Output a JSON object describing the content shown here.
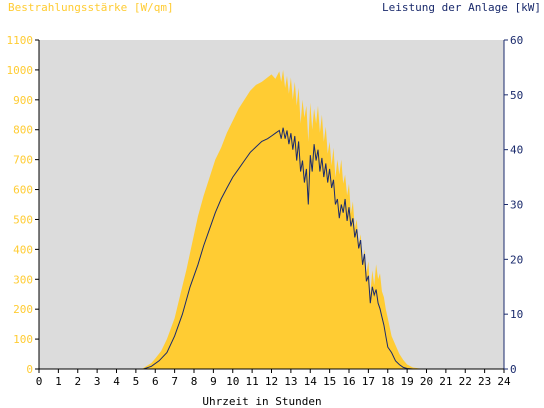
{
  "chart_data": {
    "type": "area",
    "title_left": "Bestrahlungsstärke [W/qm]",
    "title_right": "Leistung der Anlage [kW]",
    "xlabel": "Uhrzeit in Stunden",
    "xlim": [
      0,
      24
    ],
    "ylim_left": [
      0,
      1100
    ],
    "ylim_right": [
      0,
      60
    ],
    "x_ticks": [
      "0",
      "1",
      "2",
      "3",
      "4",
      "5",
      "6",
      "7",
      "8",
      "9",
      "10",
      "11",
      "12",
      "13",
      "14",
      "15",
      "16",
      "17",
      "18",
      "19",
      "20",
      "21",
      "22",
      "23",
      "24"
    ],
    "y_ticks_left": [
      "0",
      "100",
      "200",
      "300",
      "400",
      "500",
      "600",
      "700",
      "800",
      "900",
      "1000",
      "1100"
    ],
    "y_ticks_right": [
      "0",
      "10",
      "20",
      "30",
      "40",
      "50",
      "60"
    ],
    "grid": false,
    "colors": {
      "plot_bg": "#dcdcdc",
      "irradiance": "#ffcc33",
      "power": "#1a2a6c",
      "left_axis_text": "#ffcc33",
      "right_axis_text": "#1a2a6c"
    },
    "series": [
      {
        "axis": "left",
        "style": "area",
        "x": [
          0,
          5.3,
          5.5,
          5.8,
          6.0,
          6.3,
          6.6,
          7.0,
          7.3,
          7.6,
          7.9,
          8.2,
          8.5,
          8.8,
          9.1,
          9.4,
          9.7,
          10.0,
          10.3,
          10.6,
          10.9,
          11.2,
          11.5,
          11.8,
          12.0,
          12.2,
          12.4,
          12.5,
          12.6,
          12.7,
          12.8,
          12.9,
          13.0,
          13.1,
          13.2,
          13.3,
          13.4,
          13.5,
          13.6,
          13.7,
          13.8,
          13.9,
          14.0,
          14.1,
          14.2,
          14.3,
          14.4,
          14.5,
          14.6,
          14.7,
          14.8,
          14.9,
          15.0,
          15.1,
          15.2,
          15.3,
          15.4,
          15.5,
          15.6,
          15.7,
          15.8,
          15.9,
          16.0,
          16.1,
          16.2,
          16.3,
          16.4,
          16.5,
          16.6,
          16.7,
          16.8,
          16.9,
          17.0,
          17.1,
          17.2,
          17.3,
          17.4,
          17.5,
          17.6,
          17.7,
          17.8,
          17.9,
          18.0,
          18.2,
          18.4,
          18.6,
          18.8,
          19.0,
          19.3,
          19.6,
          20.0,
          24
        ],
        "y": [
          0,
          0,
          8,
          20,
          35,
          60,
          100,
          170,
          250,
          330,
          420,
          510,
          580,
          640,
          700,
          740,
          790,
          830,
          870,
          900,
          930,
          950,
          960,
          975,
          985,
          970,
          995,
          960,
          1000,
          940,
          980,
          920,
          975,
          900,
          960,
          880,
          940,
          820,
          900,
          840,
          880,
          760,
          890,
          800,
          870,
          820,
          880,
          790,
          850,
          760,
          810,
          720,
          760,
          680,
          740,
          640,
          700,
          650,
          700,
          620,
          650,
          580,
          620,
          520,
          560,
          470,
          500,
          420,
          450,
          360,
          400,
          320,
          360,
          250,
          330,
          280,
          350,
          300,
          320,
          260,
          240,
          200,
          170,
          110,
          80,
          50,
          30,
          15,
          5,
          2,
          0,
          0
        ]
      },
      {
        "axis": "right",
        "style": "line",
        "x": [
          0,
          5.4,
          5.8,
          6.2,
          6.6,
          7.0,
          7.4,
          7.8,
          8.0,
          8.2,
          8.5,
          8.8,
          9.1,
          9.4,
          9.7,
          10.0,
          10.3,
          10.6,
          10.9,
          11.2,
          11.5,
          11.8,
          12.0,
          12.2,
          12.4,
          12.5,
          12.6,
          12.7,
          12.8,
          12.9,
          13.0,
          13.1,
          13.2,
          13.3,
          13.4,
          13.5,
          13.6,
          13.7,
          13.8,
          13.9,
          14.0,
          14.1,
          14.2,
          14.3,
          14.4,
          14.5,
          14.6,
          14.7,
          14.8,
          14.9,
          15.0,
          15.1,
          15.2,
          15.3,
          15.4,
          15.5,
          15.6,
          15.7,
          15.8,
          15.9,
          16.0,
          16.1,
          16.2,
          16.3,
          16.4,
          16.5,
          16.6,
          16.7,
          16.8,
          16.9,
          17.0,
          17.1,
          17.2,
          17.3,
          17.4,
          17.5,
          17.6,
          17.7,
          17.8,
          17.9,
          18.0,
          18.2,
          18.4,
          18.6,
          18.8,
          19.0,
          19.3,
          19.6,
          20.0,
          24
        ],
        "y": [
          0,
          0,
          0.5,
          1.5,
          3,
          6,
          10,
          15,
          17,
          19,
          22.5,
          25.5,
          28.5,
          31,
          33,
          35,
          36.5,
          38,
          39.5,
          40.5,
          41.5,
          42,
          42.5,
          43,
          43.5,
          42,
          44,
          42,
          43.5,
          41,
          43,
          40,
          42.5,
          38,
          41.5,
          36,
          38,
          34,
          36.5,
          30,
          39,
          36,
          41,
          38,
          40,
          36,
          38.5,
          35,
          37.5,
          34,
          36.5,
          33,
          34.5,
          30,
          31,
          27.5,
          30,
          28.5,
          31,
          27,
          29.5,
          26,
          27.5,
          24,
          25.5,
          22,
          23.5,
          19,
          21,
          16,
          17,
          12,
          15,
          13.5,
          14.5,
          12,
          11,
          9.5,
          8,
          6,
          4,
          3,
          1.5,
          0.8,
          0.3,
          0.1,
          0,
          0,
          0,
          0
        ]
      }
    ]
  }
}
